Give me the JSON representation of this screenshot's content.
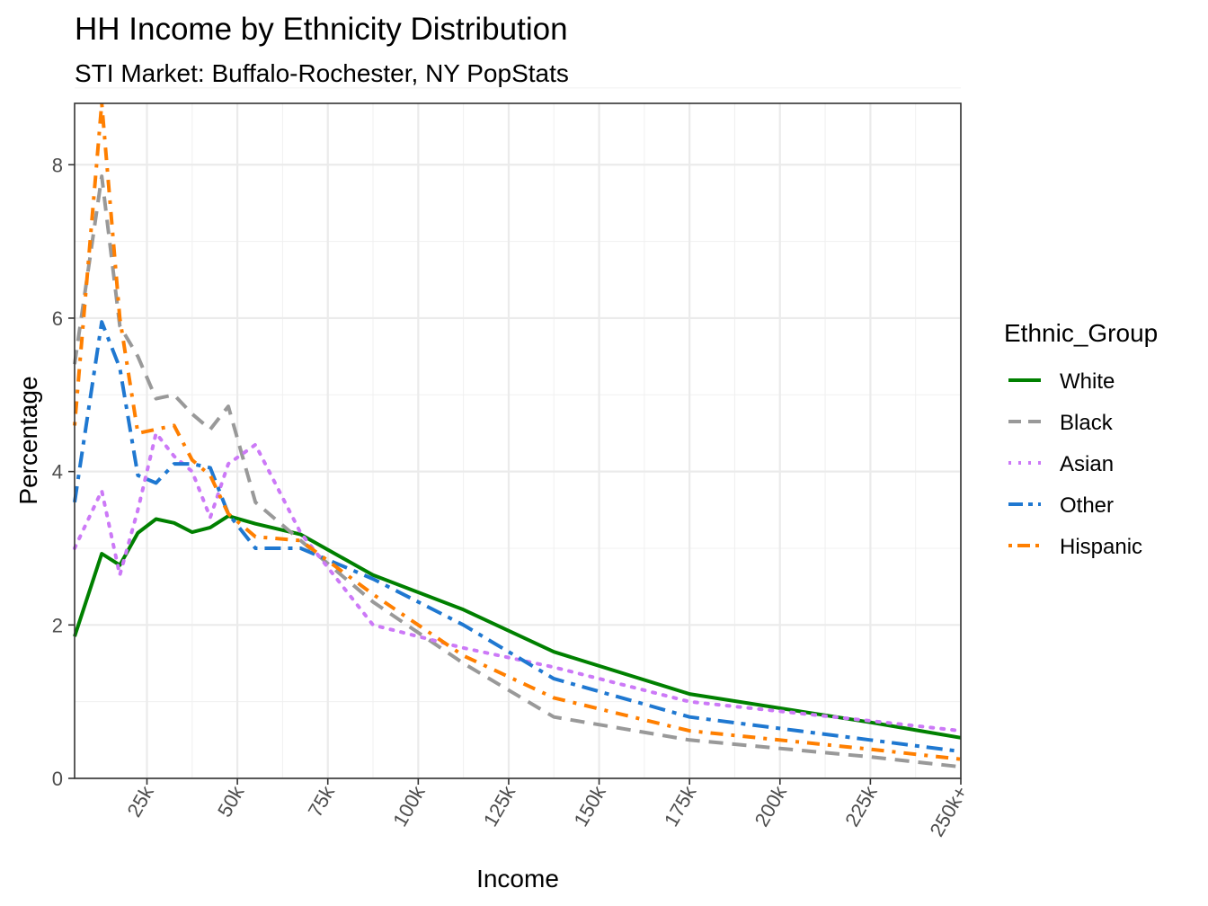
{
  "chart_data": {
    "type": "line",
    "title": "HH Income by Ethnicity Distribution",
    "subtitle": "STI Market: Buffalo-Rochester, NY PopStats",
    "xlabel": "Income",
    "ylabel": "Percentage",
    "xlim": [
      5,
      250
    ],
    "ylim": [
      0,
      8.8
    ],
    "grid": true,
    "legend_title": "Ethnic_Group",
    "legend_position": "right",
    "x_ticks": [
      {
        "value": 25,
        "label": "25k"
      },
      {
        "value": 50,
        "label": "50k"
      },
      {
        "value": 75,
        "label": "75k"
      },
      {
        "value": 100,
        "label": "100k"
      },
      {
        "value": 125,
        "label": "125k"
      },
      {
        "value": 150,
        "label": "150k"
      },
      {
        "value": 175,
        "label": "175k"
      },
      {
        "value": 200,
        "label": "200k"
      },
      {
        "value": 225,
        "label": "225k"
      },
      {
        "value": 250,
        "label": "250k+"
      }
    ],
    "y_ticks": [
      {
        "value": 0,
        "label": "0"
      },
      {
        "value": 2,
        "label": "2"
      },
      {
        "value": 4,
        "label": "4"
      },
      {
        "value": 6,
        "label": "6"
      },
      {
        "value": 8,
        "label": "8"
      }
    ],
    "x": [
      5,
      12.5,
      17.5,
      22.5,
      27.5,
      32.5,
      37.5,
      42.5,
      47.5,
      55,
      67.5,
      87.5,
      112.5,
      137.5,
      175,
      225,
      250
    ],
    "series": [
      {
        "name": "White",
        "color": "#008000",
        "dash": "solid",
        "values": [
          1.85,
          2.93,
          2.78,
          3.2,
          3.38,
          3.33,
          3.21,
          3.27,
          3.42,
          3.32,
          3.18,
          2.65,
          2.2,
          1.65,
          1.1,
          0.73,
          0.53
        ]
      },
      {
        "name": "Black",
        "color": "#999999",
        "dash": "dashed",
        "values": [
          5.4,
          7.85,
          5.9,
          5.5,
          4.95,
          5.0,
          4.75,
          4.55,
          4.85,
          3.6,
          3.1,
          2.3,
          1.5,
          0.8,
          0.5,
          0.28,
          0.15
        ]
      },
      {
        "name": "Asian",
        "color": "#CC79F7",
        "dash": "dotted",
        "values": [
          3.0,
          3.75,
          2.65,
          3.5,
          4.5,
          4.2,
          4.0,
          3.4,
          4.1,
          4.35,
          3.2,
          2.0,
          1.7,
          1.45,
          1.0,
          0.75,
          0.62
        ]
      },
      {
        "name": "Other",
        "color": "#1F78D1",
        "dash": "dashdot-long",
        "values": [
          3.6,
          5.95,
          5.35,
          3.95,
          3.85,
          4.1,
          4.1,
          4.05,
          3.45,
          3.0,
          3.0,
          2.6,
          2.0,
          1.3,
          0.8,
          0.5,
          0.35
        ]
      },
      {
        "name": "Hispanic",
        "color": "#FF7F00",
        "dash": "dotdash",
        "values": [
          4.6,
          8.8,
          6.0,
          4.5,
          4.55,
          4.6,
          4.15,
          3.95,
          3.45,
          3.15,
          3.1,
          2.4,
          1.6,
          1.05,
          0.62,
          0.38,
          0.25
        ]
      }
    ]
  }
}
